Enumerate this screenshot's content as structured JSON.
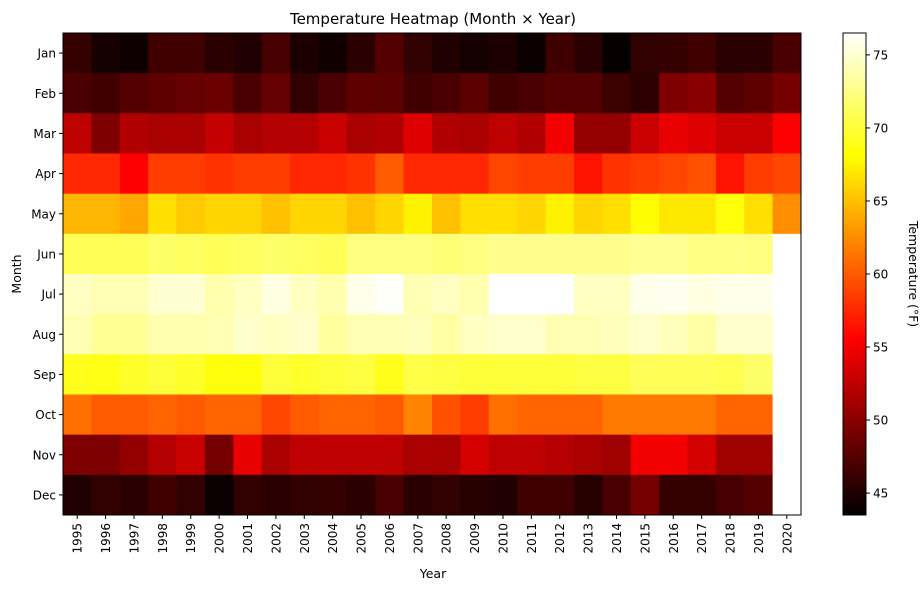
{
  "chart_data": {
    "type": "heatmap",
    "title": "Temperature Heatmap (Month × Year)",
    "xlabel": "Year",
    "ylabel": "Month",
    "colorbar_label": "Temperature (°F)",
    "colormap": "hot",
    "color_range": [
      43.5,
      76.5
    ],
    "colorbar_ticks": [
      45,
      50,
      55,
      60,
      65,
      70,
      75
    ],
    "x": [
      "1995",
      "1996",
      "1997",
      "1998",
      "1999",
      "2000",
      "2001",
      "2002",
      "2003",
      "2004",
      "2005",
      "2006",
      "2007",
      "2008",
      "2009",
      "2010",
      "2011",
      "2012",
      "2013",
      "2014",
      "2015",
      "2016",
      "2017",
      "2018",
      "2019",
      "2020"
    ],
    "y": [
      "Jan",
      "Feb",
      "Mar",
      "Apr",
      "May",
      "Jun",
      "Jul",
      "Aug",
      "Sep",
      "Oct",
      "Nov",
      "Dec"
    ],
    "values": [
      [
        46.0,
        44.5,
        44.2,
        46.5,
        46.5,
        45.5,
        45.0,
        46.8,
        44.8,
        44.3,
        45.5,
        47.5,
        45.8,
        45.0,
        44.5,
        44.8,
        44.0,
        46.5,
        45.5,
        43.8,
        45.8,
        46.0,
        46.5,
        45.5,
        45.5,
        47.0
      ],
      [
        47.0,
        46.5,
        47.5,
        48.0,
        48.2,
        48.5,
        47.0,
        48.2,
        45.8,
        47.0,
        48.0,
        47.8,
        46.5,
        47.0,
        47.8,
        46.5,
        47.0,
        47.5,
        47.5,
        46.3,
        45.6,
        49.5,
        50.0,
        47.5,
        48.0,
        49.0
      ],
      [
        52.5,
        49.5,
        51.8,
        51.5,
        51.5,
        52.8,
        51.5,
        52.0,
        52.0,
        53.0,
        51.5,
        51.8,
        54.0,
        51.8,
        51.5,
        52.5,
        51.8,
        55.0,
        50.5,
        50.5,
        53.0,
        54.5,
        54.0,
        53.0,
        53.0,
        55.5
      ],
      [
        57.5,
        57.5,
        55.5,
        58.5,
        58.5,
        58.0,
        58.5,
        58.5,
        57.5,
        57.5,
        58.0,
        60.0,
        57.5,
        57.5,
        57.5,
        59.0,
        58.5,
        58.5,
        56.5,
        58.0,
        58.5,
        59.0,
        59.5,
        56.5,
        58.5,
        59.0
      ],
      [
        64.5,
        64.5,
        63.8,
        66.5,
        65.5,
        66.0,
        66.0,
        65.0,
        66.0,
        66.0,
        65.0,
        66.0,
        67.5,
        65.0,
        66.5,
        66.5,
        66.0,
        67.5,
        66.0,
        66.5,
        68.0,
        67.0,
        67.0,
        68.5,
        66.5,
        62.5
      ],
      [
        71.0,
        71.0,
        71.0,
        71.5,
        71.3,
        71.0,
        71.3,
        71.5,
        71.3,
        71.0,
        72.3,
        72.3,
        72.3,
        72.0,
        72.3,
        72.8,
        72.8,
        72.8,
        72.8,
        72.8,
        73.0,
        73.0,
        72.5,
        72.5,
        72.3,
        76.5
      ],
      [
        74.5,
        74.0,
        74.0,
        75.0,
        75.0,
        73.8,
        74.5,
        75.5,
        74.5,
        73.8,
        75.8,
        76.3,
        74.0,
        74.5,
        73.8,
        76.5,
        76.5,
        76.5,
        74.5,
        74.5,
        75.8,
        76.0,
        75.5,
        75.8,
        75.8,
        76.5
      ],
      [
        74.0,
        73.0,
        73.0,
        73.8,
        73.8,
        74.0,
        74.8,
        74.5,
        74.8,
        73.3,
        74.0,
        74.0,
        74.3,
        73.5,
        74.5,
        74.8,
        74.8,
        74.0,
        74.0,
        74.3,
        74.8,
        74.3,
        73.5,
        74.8,
        74.8,
        76.5
      ],
      [
        69.0,
        68.8,
        69.5,
        70.0,
        69.5,
        68.5,
        68.5,
        70.0,
        69.5,
        70.0,
        70.3,
        69.0,
        70.5,
        70.3,
        70.0,
        70.0,
        70.0,
        70.0,
        70.3,
        70.3,
        71.0,
        71.0,
        71.0,
        70.8,
        71.5,
        76.5
      ],
      [
        61.0,
        60.0,
        60.0,
        60.5,
        60.0,
        60.5,
        60.5,
        59.0,
        60.0,
        60.5,
        60.5,
        60.0,
        62.0,
        59.5,
        58.5,
        61.0,
        60.5,
        60.5,
        60.5,
        61.5,
        61.5,
        61.5,
        61.5,
        60.5,
        60.5,
        76.5
      ],
      [
        49.5,
        49.5,
        50.5,
        52.0,
        53.0,
        49.0,
        54.5,
        51.5,
        52.5,
        52.5,
        52.5,
        52.5,
        51.5,
        51.5,
        53.5,
        52.5,
        52.5,
        52.0,
        51.5,
        51.0,
        55.0,
        55.0,
        53.5,
        51.0,
        51.0,
        76.5
      ],
      [
        45.0,
        45.8,
        45.5,
        46.5,
        45.8,
        44.0,
        45.8,
        45.5,
        45.8,
        46.0,
        45.5,
        47.0,
        45.5,
        45.8,
        45.3,
        45.0,
        46.5,
        46.5,
        45.3,
        47.0,
        49.0,
        46.0,
        46.0,
        46.8,
        47.5,
        76.5
      ]
    ]
  }
}
